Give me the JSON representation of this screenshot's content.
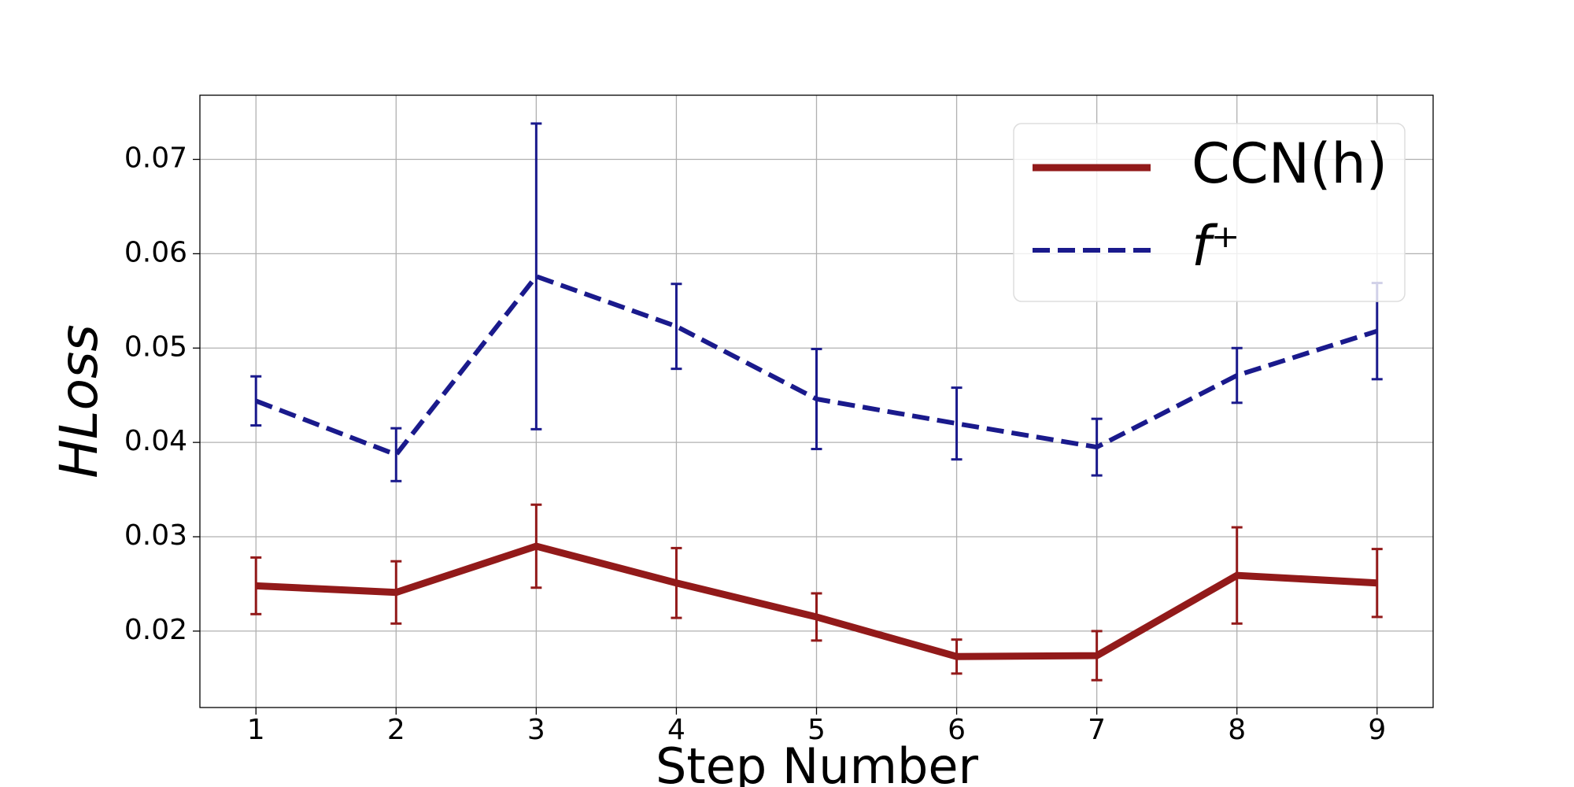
{
  "chart_data": {
    "type": "line",
    "xlabel": "Step Number",
    "ylabel": "HLoss",
    "x": [
      1,
      2,
      3,
      4,
      5,
      6,
      7,
      8,
      9
    ],
    "series": [
      {
        "name": "CCN(h)",
        "color": "#921a1a",
        "style": "solid",
        "values": [
          0.0248,
          0.0241,
          0.029,
          0.0251,
          0.0215,
          0.0173,
          0.0174,
          0.0259,
          0.0251
        ],
        "errors": [
          0.003,
          0.0033,
          0.0044,
          0.0037,
          0.0025,
          0.0018,
          0.0026,
          0.0051,
          0.0036
        ]
      },
      {
        "name": "f⁺",
        "color": "#1a1a8c",
        "style": "dashed",
        "values": [
          0.0444,
          0.0387,
          0.0576,
          0.0523,
          0.0446,
          0.042,
          0.0395,
          0.0471,
          0.0518
        ],
        "errors": [
          0.0026,
          0.0028,
          0.0162,
          0.0045,
          0.0053,
          0.0038,
          0.003,
          0.0029,
          0.0051
        ]
      }
    ],
    "xlim": [
      0.6,
      9.4
    ],
    "ylim": [
      0.0119,
      0.0768
    ],
    "xticks": [
      1,
      2,
      3,
      4,
      5,
      6,
      7,
      8,
      9
    ],
    "yticks": [
      0.02,
      0.03,
      0.04,
      0.05,
      0.06,
      0.07
    ],
    "grid": true,
    "legend": "upper right"
  }
}
